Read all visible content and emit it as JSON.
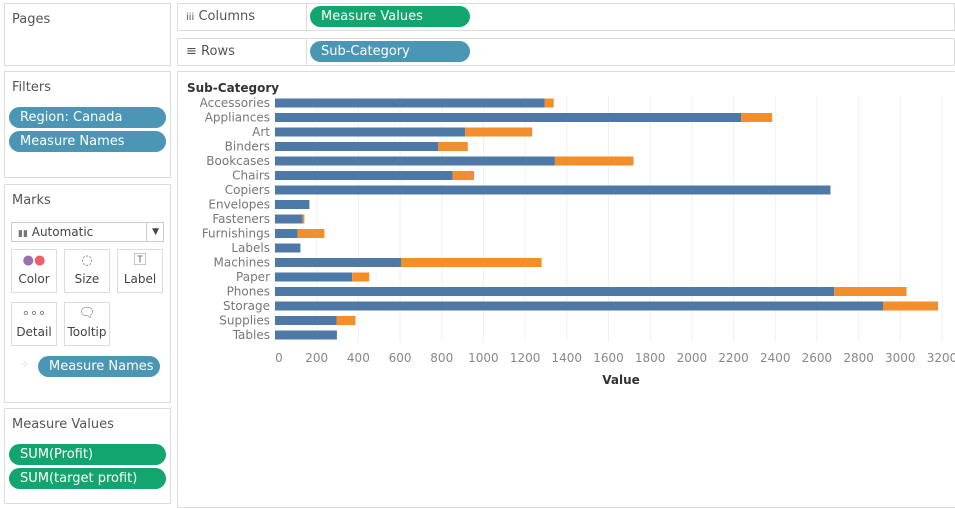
{
  "pages": {
    "title": "Pages"
  },
  "filters": {
    "title": "Filters",
    "items": [
      "Region: Canada",
      "Measure Names"
    ]
  },
  "marks": {
    "title": "Marks",
    "type": "Automatic",
    "buttons": {
      "color": "Color",
      "size": "Size",
      "label": "Label",
      "detail": "Detail",
      "tooltip": "Tooltip"
    },
    "color_pill": "Measure Names"
  },
  "measure_values": {
    "title": "Measure Values",
    "items": [
      "SUM(Profit)",
      "SUM(target profit)"
    ]
  },
  "shelves": {
    "columns_label": "Columns",
    "columns_pill": "Measure Values",
    "rows_label": "Rows",
    "rows_pill": "Sub-Category"
  },
  "chart_data": {
    "type": "bar",
    "orientation": "horizontal",
    "stacked": true,
    "row_header": "Sub-Category",
    "xlabel": "Value",
    "xlim": [
      0,
      3200
    ],
    "xticks": [
      0,
      200,
      400,
      600,
      800,
      1000,
      1200,
      1400,
      1600,
      1800,
      2000,
      2200,
      2400,
      2600,
      2800,
      3000,
      3200
    ],
    "grid": true,
    "categories": [
      "Accessories",
      "Appliances",
      "Art",
      "Binders",
      "Bookcases",
      "Chairs",
      "Copiers",
      "Envelopes",
      "Fasteners",
      "Furnishings",
      "Labels",
      "Machines",
      "Paper",
      "Phones",
      "Storage",
      "Supplies",
      "Tables"
    ],
    "series": [
      {
        "color": "#4e79a7",
        "values": [
          1293,
          2236,
          912,
          782,
          1343,
          852,
          2665,
          165,
          133,
          109,
          122,
          606,
          370,
          2683,
          2917,
          295,
          297
        ]
      },
      {
        "color": "#f28e2b",
        "values": [
          44,
          149,
          322,
          143,
          377,
          103,
          0,
          0,
          8,
          128,
          0,
          673,
          82,
          347,
          264,
          91,
          0
        ]
      }
    ]
  }
}
